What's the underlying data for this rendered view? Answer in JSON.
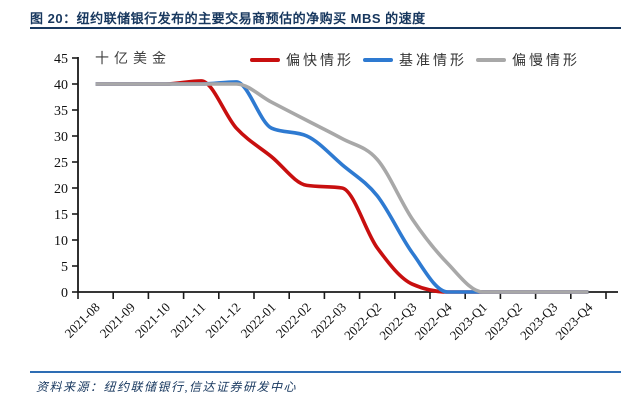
{
  "page": {
    "title": "图 20：纽约联储银行发布的主要交易商预估的净购买 MBS 的速度",
    "source_note": "资料来源：纽约联储银行,信达证券研发中心"
  },
  "colors": {
    "title_navy": "#17375e",
    "footer_rule_blue": "#2e6db4",
    "axis": "#1a1a1a",
    "fast_red": "#c80f0f",
    "base_blue": "#2e7ad1",
    "slow_gray": "#a8a8a8"
  },
  "chart_data": {
    "type": "line",
    "title": "",
    "unit_label": "十亿美金",
    "xlabel": "",
    "ylabel": "十亿美金",
    "ylim": [
      0,
      45
    ],
    "ytick_step": 5,
    "grid": false,
    "legend_position": "top-right",
    "categories": [
      "2021-08",
      "2021-09",
      "2021-10",
      "2021-11",
      "2021-12",
      "2022-01",
      "2022-02",
      "2022-03",
      "2022-Q2",
      "2022-Q3",
      "2022-Q4",
      "2023-Q1",
      "2023-Q2",
      "2023-Q3",
      "2023-Q4"
    ],
    "series": [
      {
        "key": "fast",
        "name": "偏快情形",
        "color": "#c80f0f",
        "values": [
          40,
          40,
          40,
          40.6,
          31.5,
          26,
          20.5,
          20,
          8.5,
          1.5,
          0,
          0,
          0,
          0,
          0
        ]
      },
      {
        "key": "base",
        "name": "基准情形",
        "color": "#2e7ad1",
        "values": [
          40,
          40,
          40,
          40,
          40.4,
          31.5,
          30,
          24.5,
          18.5,
          7.5,
          0,
          0,
          0,
          0,
          0
        ]
      },
      {
        "key": "slow",
        "name": "偏慢情形",
        "color": "#a8a8a8",
        "values": [
          40,
          40,
          40,
          40,
          40,
          36.5,
          33,
          29.5,
          25.5,
          14,
          5.5,
          0,
          0,
          0,
          0
        ]
      }
    ]
  }
}
